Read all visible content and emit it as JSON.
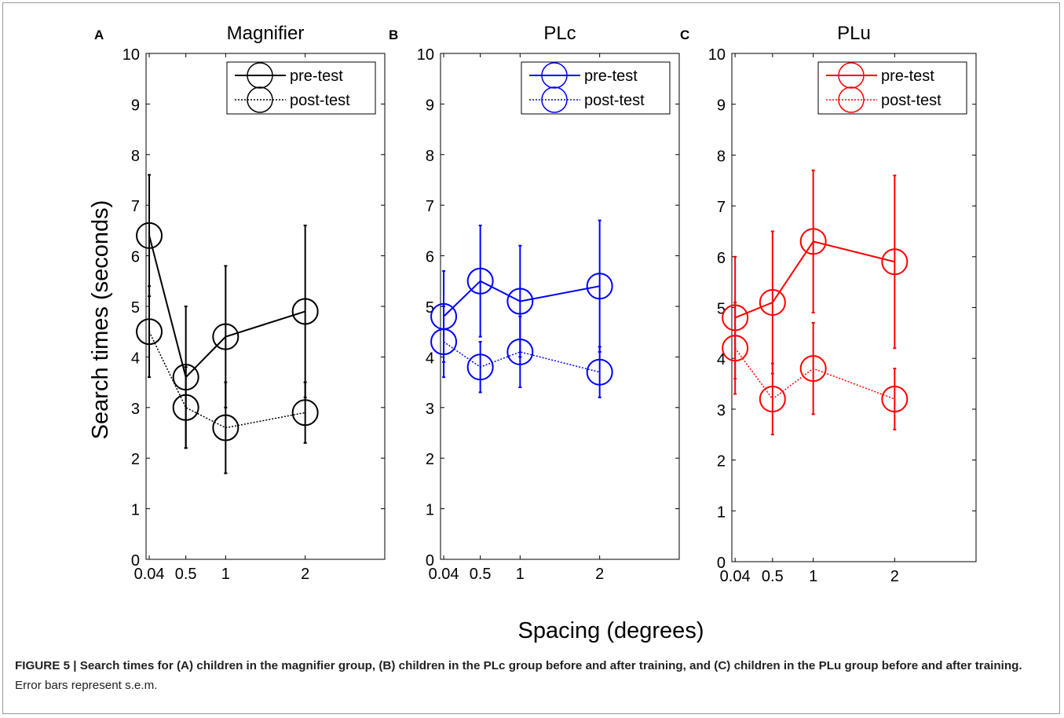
{
  "xlabel": "Spacing (degrees)",
  "ylabel": "Search times (seconds)",
  "caption": {
    "bold": "FIGURE 5 | Search times for (A) children in the magnifier group, (B) children in the PLc group before and after training, and (C) children in the PLu group before and after training.",
    "normal": " Error bars represent s.e.m."
  },
  "chart_data": [
    {
      "type": "line",
      "panel_letter": "A",
      "title": "Magnifier",
      "color": "#000000",
      "x": [
        0.04,
        0.5,
        1,
        2
      ],
      "xticks": [
        "0.04",
        "0.5",
        "1",
        "2"
      ],
      "xlim": [
        0,
        3
      ],
      "ylim": [
        0,
        10
      ],
      "yticks": [
        "0",
        "1",
        "2",
        "3",
        "4",
        "5",
        "6",
        "7",
        "8",
        "9",
        "10"
      ],
      "legend_position": "top-right",
      "series": [
        {
          "name": "pre-test",
          "style": "solid",
          "values": [
            6.4,
            3.6,
            4.4,
            4.9
          ],
          "error": [
            1.2,
            1.4,
            1.4,
            1.7
          ]
        },
        {
          "name": "post-test",
          "style": "dotted",
          "values": [
            4.5,
            3.0,
            2.6,
            2.9
          ],
          "error": [
            0.9,
            0.8,
            0.9,
            0.6
          ]
        }
      ]
    },
    {
      "type": "line",
      "panel_letter": "B",
      "title": "PLc",
      "color": "#0000ff",
      "x": [
        0.04,
        0.5,
        1,
        2
      ],
      "xticks": [
        "0.04",
        "0.5",
        "1",
        "2"
      ],
      "xlim": [
        0,
        3
      ],
      "ylim": [
        0,
        10
      ],
      "yticks": [
        "0",
        "1",
        "2",
        "3",
        "4",
        "5",
        "6",
        "7",
        "8",
        "9",
        "10"
      ],
      "legend_position": "top-right",
      "series": [
        {
          "name": "pre-test",
          "style": "solid",
          "values": [
            4.8,
            5.5,
            5.1,
            5.4
          ],
          "error": [
            0.9,
            1.1,
            1.1,
            1.3
          ]
        },
        {
          "name": "post-test",
          "style": "dotted",
          "values": [
            4.3,
            3.8,
            4.1,
            3.7
          ],
          "error": [
            0.7,
            0.5,
            0.7,
            0.5
          ]
        }
      ]
    },
    {
      "type": "line",
      "panel_letter": "C",
      "title": "PLu",
      "color": "#ff0000",
      "x": [
        0.04,
        0.5,
        1,
        2
      ],
      "xticks": [
        "0.04",
        "0.5",
        "1",
        "2"
      ],
      "xlim": [
        0,
        3
      ],
      "ylim": [
        0,
        10
      ],
      "yticks": [
        "0",
        "1",
        "2",
        "3",
        "4",
        "5",
        "6",
        "7",
        "8",
        "9",
        "10"
      ],
      "legend_position": "top-right",
      "series": [
        {
          "name": "pre-test",
          "style": "solid",
          "values": [
            4.8,
            5.1,
            6.3,
            5.9
          ],
          "error": [
            1.2,
            1.4,
            1.4,
            1.7
          ]
        },
        {
          "name": "post-test",
          "style": "dotted",
          "values": [
            4.2,
            3.2,
            3.8,
            3.2
          ],
          "error": [
            0.9,
            0.7,
            0.9,
            0.6
          ]
        }
      ]
    }
  ]
}
